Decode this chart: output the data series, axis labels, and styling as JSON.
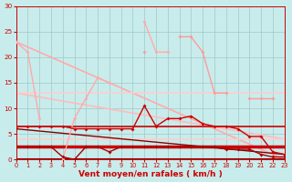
{
  "bg_color": "#c8ecec",
  "grid_color": "#a0c8c8",
  "tick_color": "#cc0000",
  "label_color": "#cc0000",
  "xlabel": "Vent moyen/en rafales ( km/h )",
  "yticks": [
    0,
    5,
    10,
    15,
    20,
    25,
    30
  ],
  "xticks": [
    0,
    1,
    2,
    3,
    4,
    5,
    6,
    7,
    8,
    9,
    10,
    11,
    12,
    13,
    14,
    15,
    16,
    17,
    18,
    19,
    20,
    21,
    22,
    23
  ],
  "ylim": [
    0,
    30
  ],
  "xlim": [
    0,
    23
  ],
  "diag_line1": {
    "x": [
      0,
      23
    ],
    "y": [
      23,
      0
    ],
    "color": "#ffaaaa",
    "lw": 1.2
  },
  "diag_line2": {
    "x": [
      0,
      23
    ],
    "y": [
      13,
      4
    ],
    "color": "#ffbbbb",
    "lw": 1.2
  },
  "horiz_line_13": {
    "x": [
      0,
      23
    ],
    "y": [
      13,
      13
    ],
    "color": "#ffcccc",
    "lw": 1.2
  },
  "horiz_line_4": {
    "x": [
      0,
      23
    ],
    "y": [
      4,
      4
    ],
    "color": "#ffcccc",
    "lw": 1.2
  },
  "curve_pink_spiky": {
    "x": [
      0,
      1,
      2,
      3,
      4,
      5,
      6,
      7,
      8,
      9,
      10,
      11,
      12,
      13,
      14,
      15,
      16,
      17,
      18,
      19,
      20,
      21,
      22,
      23
    ],
    "y": [
      23,
      21,
      8,
      null,
      0,
      8,
      12,
      16,
      15,
      null,
      null,
      27,
      21,
      21,
      null,
      null,
      null,
      null,
      null,
      null,
      null,
      null,
      null,
      null
    ],
    "color": "#ffaaaa",
    "lw": 1.0,
    "ms": 2.0
  },
  "curve_pink_hump": {
    "x": [
      0,
      1,
      2,
      3,
      4,
      5,
      6,
      7,
      8,
      9,
      10,
      11,
      12,
      13,
      14,
      15,
      16,
      17,
      18,
      19,
      20,
      21,
      22,
      23
    ],
    "y": [
      null,
      null,
      null,
      null,
      null,
      null,
      null,
      null,
      null,
      null,
      null,
      21,
      null,
      null,
      24,
      24,
      21,
      13,
      13,
      null,
      12,
      12,
      12,
      null
    ],
    "color": "#ff9999",
    "lw": 1.0,
    "ms": 2.0
  },
  "curve_dark_upper": {
    "x": [
      0,
      1,
      2,
      3,
      4,
      5,
      6,
      7,
      8,
      9,
      10,
      11,
      12,
      13,
      14,
      15,
      16,
      17,
      18,
      19,
      20,
      21,
      22,
      23
    ],
    "y": [
      6.5,
      6.5,
      6.5,
      6.5,
      6.5,
      6.0,
      6.0,
      6.0,
      6.0,
      6.0,
      6.0,
      10.5,
      6.5,
      8.0,
      8.0,
      8.5,
      7.0,
      6.5,
      6.5,
      6.0,
      4.5,
      4.5,
      1.5,
      1.0
    ],
    "color": "#cc0000",
    "lw": 1.0,
    "ms": 2.0
  },
  "curve_dark_lower": {
    "x": [
      0,
      1,
      2,
      3,
      4,
      5,
      6,
      7,
      8,
      9,
      10,
      11,
      12,
      13,
      14,
      15,
      16,
      17,
      18,
      19,
      20,
      21,
      22,
      23
    ],
    "y": [
      2.5,
      2.5,
      2.5,
      2.5,
      0.5,
      0.0,
      2.5,
      2.5,
      1.5,
      2.5,
      2.5,
      2.5,
      2.5,
      2.5,
      2.5,
      2.5,
      2.5,
      2.5,
      2.0,
      2.0,
      2.0,
      1.0,
      0.5,
      0.5
    ],
    "color": "#aa0000",
    "lw": 1.0,
    "ms": 2.0
  },
  "flat_dark_65": {
    "x": [
      0,
      23
    ],
    "y": [
      6.5,
      6.5
    ],
    "color": "#cc0000",
    "lw": 1.2
  },
  "flat_dark_25": {
    "x": [
      0,
      23
    ],
    "y": [
      2.5,
      2.5
    ],
    "color": "#cc0000",
    "lw": 2.5
  },
  "flat_dark_decline": {
    "x": [
      0,
      23
    ],
    "y": [
      6.0,
      1.0
    ],
    "color": "#880000",
    "lw": 1.0
  },
  "flat_near_zero": {
    "x": [
      0,
      23
    ],
    "y": [
      0.3,
      0.3
    ],
    "color": "#880000",
    "lw": 0.8
  }
}
